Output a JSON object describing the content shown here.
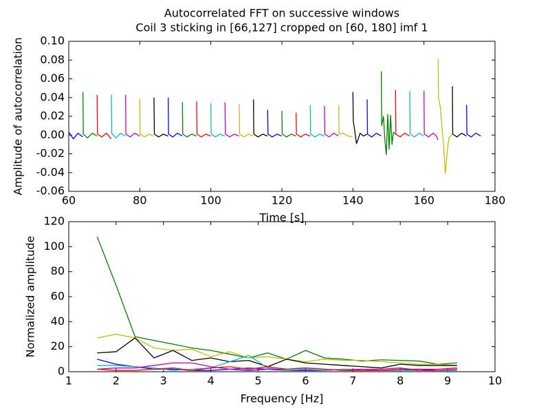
{
  "chart_data": [
    {
      "type": "line",
      "title": "Autocorrelated FFT on successive windows",
      "subtitle": "Coil 3 sticking in [66,127] cropped on [60, 180] imf 1",
      "x_label": "Time [s]",
      "y_label": "Amplitude of autocorrelation",
      "xlim": [
        60,
        180
      ],
      "xticks": [
        60,
        80,
        100,
        120,
        140,
        160,
        180
      ],
      "ylim": [
        -0.06,
        0.1
      ],
      "yticks": [
        -0.06,
        -0.04,
        -0.02,
        {
          "value": 0,
          "label": "0.00"
        },
        0.02,
        0.04,
        0.06,
        0.08,
        {
          "value": 0.1,
          "label": "0.10"
        }
      ],
      "series": [
        {
          "color": "#0000ff",
          "x": [
            60,
            61.3,
            62.6,
            63.95
          ],
          "values": [
            0.003,
            -0.004,
            0.002,
            -0.002
          ]
        },
        {
          "color": "#008000",
          "x": [
            64,
            64.1,
            65.3,
            66.6,
            67.95
          ],
          "values": [
            0.046,
            0.001,
            -0.003,
            0.002,
            -0.001
          ]
        },
        {
          "color": "#ff0000",
          "x": [
            68,
            68.1,
            69.3,
            70.6,
            71.95
          ],
          "values": [
            0.043,
            0.001,
            -0.002,
            0.002,
            -0.004
          ]
        },
        {
          "color": "#00bfbf",
          "x": [
            72,
            72.1,
            73.3,
            74.6,
            75.95
          ],
          "values": [
            0.043,
            0.002,
            -0.003,
            0.002,
            -0.001
          ]
        },
        {
          "color": "#bf00bf",
          "x": [
            76,
            76.1,
            77.3,
            78.6,
            79.95
          ],
          "values": [
            0.043,
            0.001,
            -0.002,
            0.002,
            -0.001
          ]
        },
        {
          "color": "#bfbf00",
          "x": [
            80,
            80.1,
            81.3,
            82.6,
            83.95
          ],
          "values": [
            0.039,
            0.001,
            -0.002,
            0.001,
            -0.001
          ]
        },
        {
          "color": "#000000",
          "x": [
            84,
            84.1,
            85.3,
            86.6,
            87.95
          ],
          "values": [
            0.04,
            0.001,
            -0.002,
            0.001,
            -0.001
          ]
        },
        {
          "color": "#0000ff",
          "x": [
            88,
            88.1,
            89.3,
            90.6,
            91.95
          ],
          "values": [
            0.04,
            0.001,
            -0.002,
            0.002,
            -0.001
          ]
        },
        {
          "color": "#008000",
          "x": [
            92,
            92.1,
            93.3,
            94.6,
            95.95
          ],
          "values": [
            0.035,
            0.001,
            -0.002,
            0.001,
            -0.001
          ]
        },
        {
          "color": "#ff0000",
          "x": [
            96,
            96.1,
            97.3,
            98.6,
            99.95
          ],
          "values": [
            0.036,
            0.001,
            -0.002,
            0.001,
            -0.001
          ]
        },
        {
          "color": "#00bfbf",
          "x": [
            100,
            100.1,
            101.3,
            102.6,
            103.95
          ],
          "values": [
            0.034,
            0.001,
            -0.002,
            0.001,
            -0.001
          ]
        },
        {
          "color": "#bf00bf",
          "x": [
            104,
            104.1,
            105.3,
            106.6,
            107.95
          ],
          "values": [
            0.035,
            0.001,
            -0.002,
            0.001,
            -0.001
          ]
        },
        {
          "color": "#bfbf00",
          "x": [
            108,
            108.1,
            109.3,
            110.6,
            111.95
          ],
          "values": [
            0.033,
            0.001,
            -0.002,
            0.001,
            -0.001
          ]
        },
        {
          "color": "#000000",
          "x": [
            112,
            112.1,
            113.3,
            114.6,
            115.95
          ],
          "values": [
            0.038,
            0.001,
            -0.002,
            0.001,
            -0.001
          ]
        },
        {
          "color": "#0000ff",
          "x": [
            116,
            116.1,
            117.3,
            118.6,
            119.95
          ],
          "values": [
            0.027,
            0.001,
            -0.002,
            0.001,
            -0.001
          ]
        },
        {
          "color": "#008000",
          "x": [
            120,
            120.1,
            121.3,
            122.6,
            123.95
          ],
          "values": [
            0.026,
            0.001,
            -0.002,
            0.001,
            -0.001
          ]
        },
        {
          "color": "#ff0000",
          "x": [
            124,
            124.1,
            125.3,
            126.6,
            127.95
          ],
          "values": [
            0.024,
            0.001,
            -0.002,
            0.001,
            -0.001
          ]
        },
        {
          "color": "#00bfbf",
          "x": [
            128,
            128.1,
            129.3,
            130.6,
            131.95
          ],
          "values": [
            0.032,
            0.001,
            -0.002,
            0.001,
            -0.001
          ]
        },
        {
          "color": "#bf00bf",
          "x": [
            132,
            132.1,
            133.3,
            134.6,
            135.95
          ],
          "values": [
            0.031,
            0.001,
            -0.002,
            0.002,
            -0.001
          ]
        },
        {
          "color": "#bfbf00",
          "x": [
            136,
            136.1,
            137.3,
            138.6,
            139.95
          ],
          "values": [
            0.032,
            0.001,
            0.002,
            -0.001,
            -0.002
          ]
        },
        {
          "color": "#000000",
          "x": [
            140,
            140.1,
            140.5,
            141,
            141.5,
            142,
            143,
            143.95
          ],
          "values": [
            0.046,
            0.015,
            0.005,
            -0.009,
            -0.004,
            0.002,
            -0.001,
            0.001
          ]
        },
        {
          "color": "#0000ff",
          "x": [
            144,
            144.1,
            145.3,
            146.6,
            147.95
          ],
          "values": [
            0.038,
            0.001,
            -0.002,
            0.002,
            -0.001
          ]
        },
        {
          "color": "#008000",
          "x": [
            148,
            148.1,
            148.6,
            149,
            149.4,
            149.8,
            150.2,
            150.6,
            151,
            151.4,
            151.95
          ],
          "values": [
            0.068,
            0.01,
            0.02,
            -0.005,
            -0.021,
            0.022,
            -0.015,
            0.021,
            -0.01,
            0.003,
            0.001
          ]
        },
        {
          "color": "#ff0000",
          "x": [
            152,
            152.1,
            153.3,
            154.6,
            155.95
          ],
          "values": [
            0.048,
            0.001,
            -0.002,
            0.002,
            -0.001
          ]
        },
        {
          "color": "#00bfbf",
          "x": [
            156,
            156.1,
            157.3,
            158.6,
            159.95
          ],
          "values": [
            0.047,
            0.001,
            -0.002,
            0.002,
            -0.001
          ]
        },
        {
          "color": "#bf00bf",
          "x": [
            160,
            160.1,
            161.3,
            162.6,
            163.5,
            163.95
          ],
          "values": [
            0.047,
            0.001,
            -0.002,
            0.002,
            -0.001,
            -0.005
          ]
        },
        {
          "color": "#bfbf00",
          "x": [
            164,
            164.1,
            164.6,
            165,
            165.5,
            166,
            166.5,
            167,
            167.95
          ],
          "values": [
            0.081,
            0.04,
            0.03,
            0.012,
            -0.01,
            -0.041,
            -0.02,
            -0.003,
            0.001
          ]
        },
        {
          "color": "#000000",
          "x": [
            168,
            168.1,
            169.3,
            170.6,
            171.95
          ],
          "values": [
            0.052,
            0.001,
            -0.002,
            0.002,
            -0.001
          ]
        },
        {
          "color": "#0000ff",
          "x": [
            172,
            172.1,
            173.3,
            174.6,
            176
          ],
          "values": [
            0.032,
            0.001,
            -0.002,
            0.002,
            -0.001
          ]
        }
      ]
    },
    {
      "type": "line",
      "x_label": "Frequency [Hz]",
      "y_label": "Normalized amplitude",
      "xlim": [
        1,
        10
      ],
      "xticks": [
        1,
        2,
        3,
        4,
        5,
        6,
        7,
        8,
        9,
        10
      ],
      "ylim": [
        0,
        120
      ],
      "yticks": [
        0,
        20,
        40,
        60,
        80,
        100,
        120
      ],
      "x": [
        1.6,
        2.0,
        2.4,
        2.8,
        3.2,
        3.6,
        4.0,
        4.4,
        4.8,
        5.2,
        5.6,
        6.0,
        6.4,
        6.8,
        7.2,
        7.6,
        8.0,
        8.4,
        8.8,
        9.2
      ],
      "series": [
        {
          "color": "#008000",
          "values": [
            108,
            69,
            28,
            25,
            22,
            19,
            17,
            14,
            11,
            15,
            10,
            17,
            11,
            10,
            8.5,
            9.5,
            9,
            8.5,
            6,
            7
          ]
        },
        {
          "color": "#bfbf00",
          "values": [
            27,
            30,
            27,
            19,
            17,
            18,
            12,
            16,
            11,
            12,
            10,
            8,
            10,
            9,
            9,
            8,
            7,
            6,
            6,
            5
          ]
        },
        {
          "color": "#000000",
          "values": [
            15,
            16,
            27,
            11,
            17,
            9,
            11,
            8,
            9,
            4,
            10,
            7,
            6,
            5,
            4,
            3,
            6,
            5,
            5,
            5
          ]
        },
        {
          "color": "#0000ff",
          "values": [
            10,
            6,
            4,
            2,
            2,
            1,
            1,
            2,
            1,
            2,
            1,
            1,
            1,
            2,
            1,
            1,
            1,
            2,
            1,
            1
          ]
        },
        {
          "color": "#00bfbf",
          "values": [
            5,
            5,
            4,
            3,
            1,
            2,
            3,
            8,
            13,
            3,
            1,
            2,
            1,
            2,
            2,
            1,
            1,
            1,
            1,
            1
          ]
        },
        {
          "color": "#bf00bf",
          "values": [
            2,
            3,
            3,
            5,
            7,
            7,
            4,
            2,
            3,
            2,
            2,
            3,
            2,
            1,
            2,
            2,
            3,
            1,
            1,
            2
          ]
        },
        {
          "color": "#ff0000",
          "values": [
            2,
            1,
            1,
            2,
            3,
            1,
            3,
            4,
            2,
            4,
            2,
            3,
            2,
            1,
            1,
            1,
            2,
            2,
            2,
            3
          ]
        }
      ]
    }
  ]
}
